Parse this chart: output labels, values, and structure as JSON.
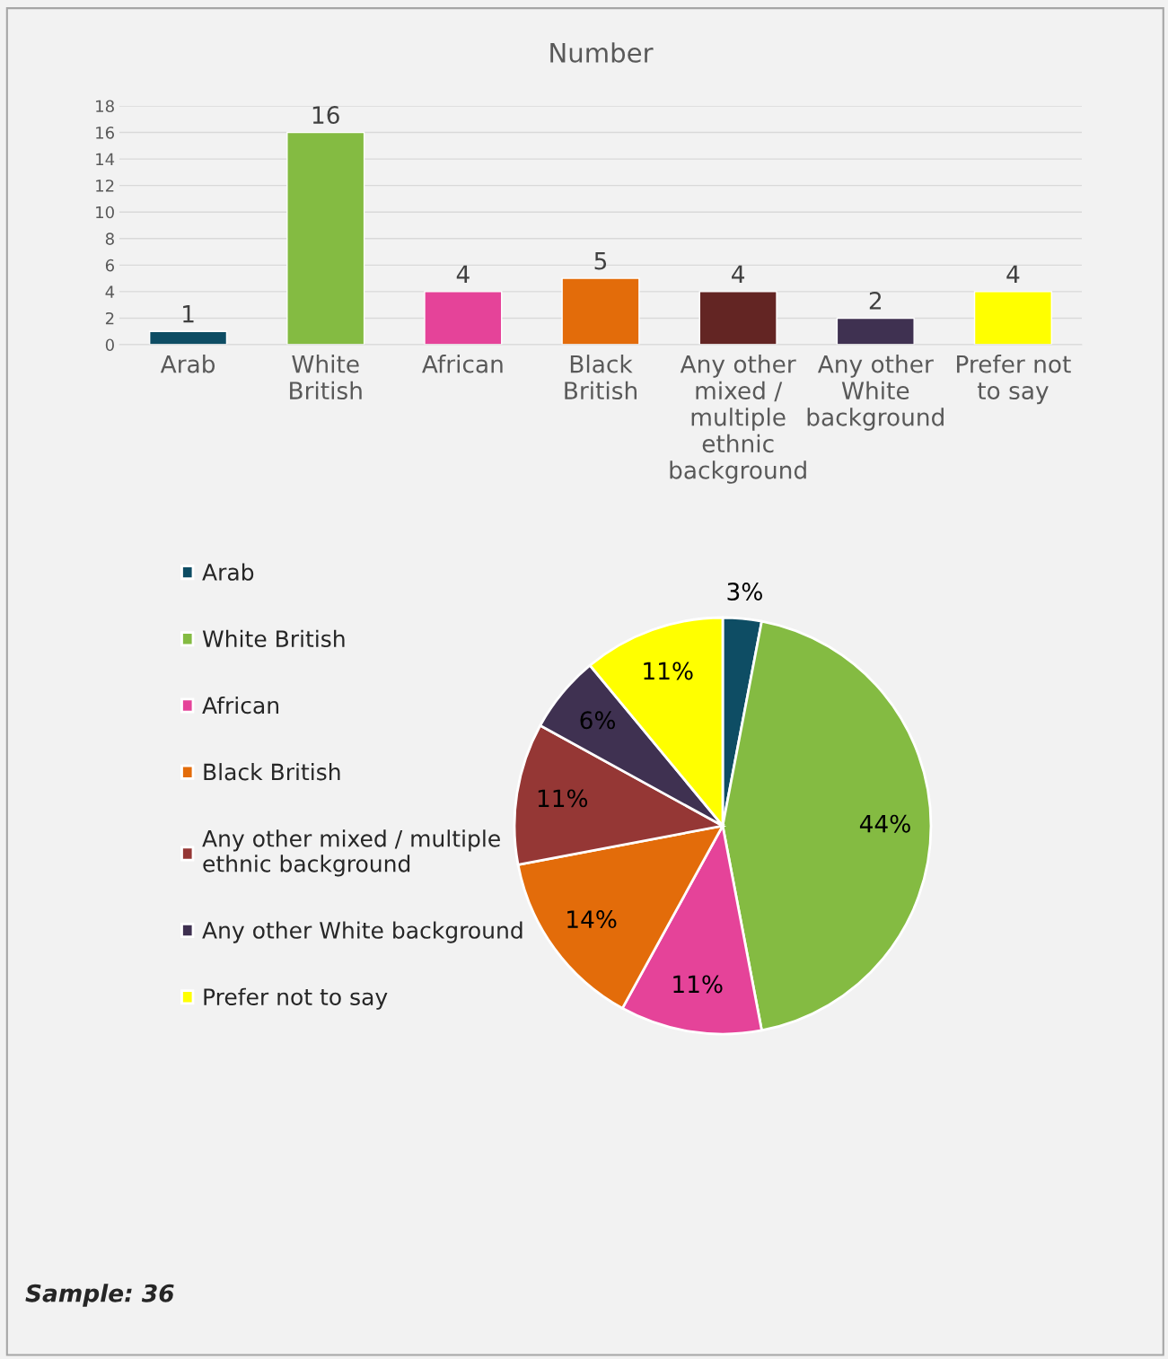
{
  "chart_data": [
    {
      "type": "bar",
      "title": "Number",
      "categories": [
        "Arab",
        "White British",
        "African",
        "Black British",
        "Any other mixed / multiple ethnic background",
        "Any other White background",
        "Prefer not to say"
      ],
      "values": [
        1,
        16,
        4,
        5,
        4,
        2,
        4
      ],
      "colors": [
        "#0e4d64",
        "#84bb42",
        "#e54399",
        "#e36c0a",
        "#632523",
        "#3f3151",
        "#ffff00"
      ],
      "ylim": [
        0,
        18
      ],
      "yticks": [
        0,
        2,
        4,
        6,
        8,
        10,
        12,
        14,
        16,
        18
      ],
      "grid": "y",
      "data_labels": true,
      "legend": false
    },
    {
      "type": "pie",
      "categories": [
        "Arab",
        "White British",
        "African",
        "Black British",
        "Any other mixed / multiple ethnic background",
        "Any other White background",
        "Prefer not to say"
      ],
      "values": [
        3,
        44,
        11,
        14,
        11,
        6,
        11
      ],
      "colors": [
        "#0e4d64",
        "#84bb42",
        "#e54399",
        "#e36c0a",
        "#953735",
        "#3f3151",
        "#ffff00"
      ],
      "value_labels": [
        "3%",
        "44%",
        "11%",
        "14%",
        "11%",
        "6%",
        "11%"
      ],
      "legend": "left",
      "annotations": [
        "Sample: 36"
      ]
    }
  ]
}
